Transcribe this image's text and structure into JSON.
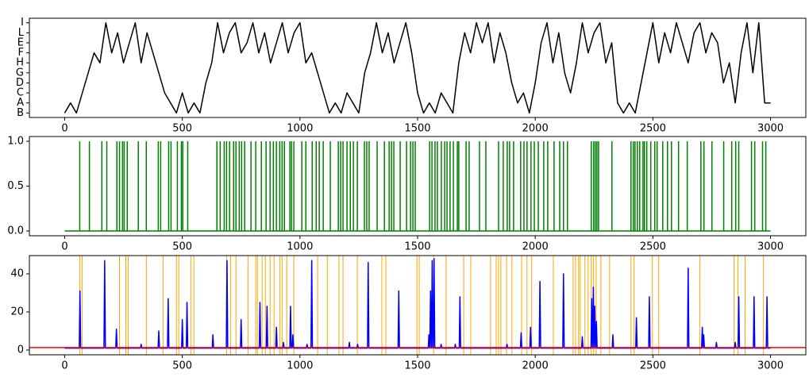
{
  "chart_data": [
    {
      "type": "line",
      "xlim": [
        -150,
        3150
      ],
      "xticks": [
        0,
        500,
        1000,
        1500,
        2000,
        2500,
        3000
      ],
      "ylim": [
        -0.45,
        9.45
      ],
      "yticks": [
        {
          "value": 0,
          "label": "B"
        },
        {
          "value": 1,
          "label": "A"
        },
        {
          "value": 2,
          "label": "C"
        },
        {
          "value": 3,
          "label": "D"
        },
        {
          "value": 4,
          "label": "G"
        },
        {
          "value": 5,
          "label": "H"
        },
        {
          "value": 6,
          "label": "F"
        },
        {
          "value": 7,
          "label": "E"
        },
        {
          "value": 8,
          "label": "L"
        },
        {
          "value": 9,
          "label": "I"
        }
      ],
      "series": [
        {
          "color": "#000000",
          "x": [
            0,
            25,
            50,
            75,
            100,
            125,
            150,
            175,
            200,
            225,
            250,
            275,
            300,
            325,
            350,
            375,
            400,
            425,
            450,
            475,
            500,
            525,
            550,
            575,
            600,
            625,
            650,
            675,
            700,
            725,
            750,
            775,
            800,
            825,
            850,
            875,
            900,
            925,
            950,
            975,
            1000,
            1025,
            1050,
            1075,
            1100,
            1125,
            1150,
            1175,
            1200,
            1225,
            1250,
            1275,
            1300,
            1325,
            1350,
            1375,
            1400,
            1425,
            1450,
            1475,
            1500,
            1525,
            1550,
            1575,
            1600,
            1625,
            1650,
            1675,
            1700,
            1725,
            1750,
            1775,
            1800,
            1825,
            1850,
            1875,
            1900,
            1925,
            1950,
            1975,
            2000,
            2025,
            2050,
            2075,
            2100,
            2125,
            2150,
            2175,
            2200,
            2225,
            2250,
            2275,
            2300,
            2325,
            2350,
            2375,
            2400,
            2425,
            2450,
            2475,
            2500,
            2525,
            2550,
            2575,
            2600,
            2625,
            2650,
            2675,
            2700,
            2725,
            2750,
            2775,
            2800,
            2825,
            2850,
            2875,
            2900,
            2925,
            2950,
            2975,
            3000
          ],
          "values": [
            0,
            1,
            0,
            2,
            4,
            6,
            5,
            9,
            6,
            8,
            5,
            7,
            9,
            5,
            8,
            6,
            4,
            2,
            1,
            0,
            2,
            0,
            1,
            0,
            3,
            5,
            9,
            6,
            8,
            9,
            6,
            7,
            9,
            6,
            8,
            5,
            7,
            9,
            6,
            8,
            9,
            5,
            6,
            4,
            2,
            0,
            1,
            0,
            2,
            1,
            0,
            4,
            6,
            9,
            6,
            8,
            5,
            7,
            9,
            6,
            2,
            0,
            1,
            0,
            2,
            1,
            0,
            5,
            8,
            6,
            9,
            7,
            9,
            5,
            8,
            6,
            3,
            1,
            2,
            0,
            3,
            7,
            9,
            5,
            8,
            4,
            2,
            5,
            9,
            6,
            8,
            9,
            5,
            7,
            1,
            0,
            1,
            0,
            3,
            6,
            9,
            5,
            8,
            6,
            9,
            7,
            5,
            8,
            9,
            6,
            8,
            7,
            3,
            5,
            1,
            6,
            9,
            4,
            9,
            1,
            1
          ]
        }
      ]
    },
    {
      "type": "stem",
      "xlim": [
        -150,
        3150
      ],
      "xticks": [
        0,
        500,
        1000,
        1500,
        2000,
        2500,
        3000
      ],
      "ylim": [
        -0.053,
        1.053
      ],
      "yticks": [
        {
          "value": 0,
          "label": "0.0"
        },
        {
          "value": 0.5,
          "label": "0.5"
        },
        {
          "value": 1,
          "label": "1.0"
        }
      ],
      "baseline": {
        "x": [
          0,
          3000
        ],
        "values": [
          0,
          0
        ]
      },
      "series": [
        {
          "color": "#008000",
          "x": [
            64,
            105,
            158,
            179,
            222,
            233,
            246,
            253,
            266,
            313,
            347,
            398,
            408,
            442,
            452,
            479,
            496,
            502,
            523,
            647,
            661,
            678,
            688,
            701,
            718,
            728,
            742,
            752,
            765,
            792,
            812,
            836,
            856,
            873,
            887,
            900,
            914,
            924,
            934,
            957,
            964,
            974,
            1008,
            1025,
            1052,
            1069,
            1082,
            1099,
            1129,
            1163,
            1173,
            1183,
            1200,
            1214,
            1227,
            1244,
            1274,
            1284,
            1294,
            1328,
            1359,
            1379,
            1389,
            1399,
            1426,
            1453,
            1470,
            1480,
            1490,
            1551,
            1561,
            1574,
            1584,
            1601,
            1615,
            1625,
            1638,
            1652,
            1669,
            1675,
            1706,
            1719,
            1763,
            1790,
            1844,
            1864,
            1881,
            1891,
            1908,
            1938,
            1952,
            1965,
            1982,
            1996,
            2013,
            2036,
            2053,
            2080,
            2104,
            2120,
            2137,
            2238,
            2248,
            2255,
            2262,
            2269,
            2326,
            2407,
            2417,
            2424,
            2434,
            2444,
            2458,
            2464,
            2474,
            2491,
            2508,
            2518,
            2542,
            2562,
            2579,
            2609,
            2646,
            2704,
            2717,
            2751,
            2801,
            2835,
            2852,
            2865,
            2919,
            2933,
            2966,
            2980
          ],
          "values": [
            1,
            1,
            1,
            1,
            1,
            1,
            1,
            1,
            1,
            1,
            1,
            1,
            1,
            1,
            1,
            1,
            1,
            1,
            1,
            1,
            1,
            1,
            1,
            1,
            1,
            1,
            1,
            1,
            1,
            1,
            1,
            1,
            1,
            1,
            1,
            1,
            1,
            1,
            1,
            1,
            1,
            1,
            1,
            1,
            1,
            1,
            1,
            1,
            1,
            1,
            1,
            1,
            1,
            1,
            1,
            1,
            1,
            1,
            1,
            1,
            1,
            1,
            1,
            1,
            1,
            1,
            1,
            1,
            1,
            1,
            1,
            1,
            1,
            1,
            1,
            1,
            1,
            1,
            1,
            1,
            1,
            1,
            1,
            1,
            1,
            1,
            1,
            1,
            1,
            1,
            1,
            1,
            1,
            1,
            1,
            1,
            1,
            1,
            1,
            1,
            1,
            1,
            1,
            1,
            1,
            1,
            1,
            1,
            1,
            1,
            1,
            1,
            1,
            1,
            1,
            1,
            1,
            1,
            1,
            1,
            1,
            1,
            1,
            1,
            1,
            1,
            1,
            1,
            1,
            1,
            1,
            1,
            1,
            1
          ]
        }
      ]
    },
    {
      "type": "line",
      "xlim": [
        -150,
        3150
      ],
      "xticks": [
        0,
        500,
        1000,
        1500,
        2000,
        2500,
        3000
      ],
      "ylim": [
        -2.5,
        49.6
      ],
      "yticks": [
        0,
        20,
        40
      ],
      "vlines": {
        "color": "#ffa500",
        "x": [
          64,
          74,
          233,
          260,
          270,
          347,
          418,
          475,
          485,
          536,
          549,
          688,
          705,
          728,
          779,
          812,
          819,
          839,
          853,
          873,
          890,
          914,
          924,
          944,
          974,
          1075,
          1116,
          1166,
          1183,
          1244,
          1348,
          1365,
          1497,
          1507,
          1568,
          1621,
          1696,
          1726,
          1810,
          1834,
          1844,
          1854,
          1878,
          1901,
          1942,
          1965,
          1985,
          2077,
          2161,
          2171,
          2184,
          2191,
          2211,
          2225,
          2238,
          2248,
          2259,
          2279,
          2316,
          2407,
          2420,
          2498,
          2525,
          2700,
          2845,
          2862,
          2892,
          2970
        ]
      },
      "hline": {
        "color": "#ff0000",
        "value": 1.3
      },
      "series": [
        {
          "color": "#0000ff",
          "x": [
            0,
            62,
            65,
            68,
            167,
            170,
            173,
            217,
            220,
            223,
            322,
            325,
            328,
            397,
            400,
            403,
            437,
            440,
            443,
            497,
            500,
            503,
            517,
            520,
            523,
            627,
            630,
            633,
            687,
            690,
            693,
            747,
            750,
            753,
            827,
            830,
            833,
            857,
            860,
            863,
            897,
            900,
            903,
            927,
            930,
            933,
            957,
            960,
            963,
            967,
            970,
            973,
            1027,
            1030,
            1033,
            1047,
            1050,
            1053,
            1207,
            1210,
            1213,
            1242,
            1245,
            1248,
            1287,
            1290,
            1293,
            1417,
            1420,
            1423,
            1545,
            1548,
            1551,
            1552,
            1555,
            1558,
            1559,
            1562,
            1565,
            1567,
            1570,
            1573,
            1597,
            1600,
            1603,
            1657,
            1660,
            1663,
            1677,
            1680,
            1683,
            1877,
            1880,
            1883,
            1937,
            1940,
            1943,
            1977,
            1980,
            1983,
            2017,
            2020,
            2023,
            2117,
            2120,
            2123,
            2197,
            2200,
            2203,
            2237,
            2240,
            2243,
            2244,
            2247,
            2250,
            2250,
            2253,
            2256,
            2257,
            2260,
            2263,
            2327,
            2330,
            2333,
            2427,
            2430,
            2433,
            2482,
            2485,
            2488,
            2647,
            2650,
            2653,
            2707,
            2710,
            2713,
            2713,
            2716,
            2719,
            2767,
            2770,
            2773,
            2847,
            2850,
            2853,
            2862,
            2865,
            2868,
            2927,
            2930,
            2933,
            2982,
            2985,
            2988,
            3000
          ],
          "values": [
            1,
            1,
            31,
            1,
            1,
            47,
            1,
            1,
            11,
            1,
            1,
            3,
            1,
            1,
            10,
            1,
            1,
            27,
            1,
            1,
            16,
            1,
            1,
            25,
            1,
            1,
            8,
            1,
            1,
            47,
            1,
            1,
            16,
            1,
            1,
            25,
            1,
            1,
            23,
            1,
            1,
            12,
            1,
            1,
            4,
            1,
            1,
            23,
            1,
            1,
            8,
            1,
            1,
            3,
            1,
            1,
            47,
            1,
            1,
            4,
            1,
            1,
            3,
            1,
            1,
            46,
            1,
            1,
            31,
            1,
            1,
            8,
            1,
            1,
            31,
            1,
            1,
            47,
            1,
            1,
            48,
            1,
            1,
            3,
            1,
            1,
            3,
            1,
            1,
            28,
            1,
            1,
            3,
            1,
            1,
            9,
            1,
            1,
            12,
            1,
            1,
            36,
            1,
            1,
            40,
            1,
            1,
            7,
            1,
            1,
            27,
            1,
            1,
            33,
            1,
            1,
            23,
            1,
            1,
            15,
            1,
            1,
            8,
            1,
            1,
            17,
            1,
            1,
            28,
            1,
            1,
            43,
            1,
            1,
            12,
            1,
            1,
            8,
            1,
            1,
            4,
            1,
            1,
            4,
            1,
            1,
            28,
            1,
            1,
            28,
            1,
            1,
            28,
            1,
            1
          ]
        }
      ]
    }
  ]
}
